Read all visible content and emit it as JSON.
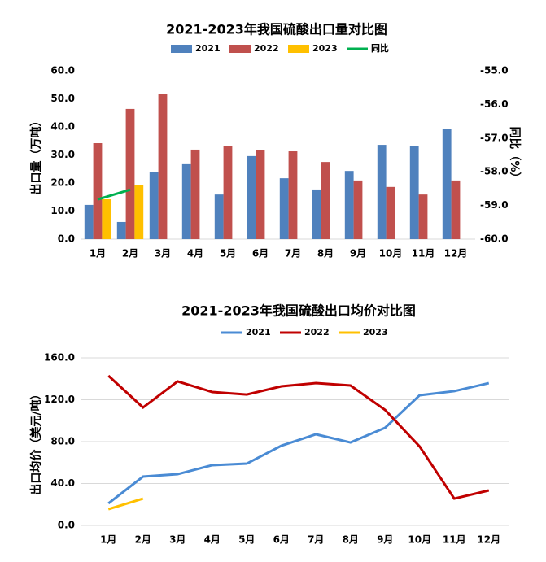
{
  "chart_data": [
    {
      "type": "bar",
      "title": "2021-2023年我国硫酸出口量对比图",
      "ylabel": "出口量（万吨）",
      "y2label": "同比（%）",
      "categories": [
        "1月",
        "2月",
        "3月",
        "4月",
        "5月",
        "6月",
        "7月",
        "8月",
        "9月",
        "10月",
        "11月",
        "12月"
      ],
      "series": [
        {
          "name": "2021",
          "color": "#4f81bd",
          "values": [
            12.2,
            6.1,
            23.8,
            26.7,
            15.9,
            29.6,
            21.7,
            17.7,
            24.3,
            33.6,
            33.3,
            39.4
          ]
        },
        {
          "name": "2022",
          "color": "#c0504d",
          "values": [
            34.2,
            46.4,
            51.6,
            31.9,
            33.3,
            31.6,
            31.3,
            27.5,
            20.9,
            18.6,
            15.9,
            20.9
          ]
        },
        {
          "name": "2023",
          "color": "#ffc000",
          "values": [
            14.2,
            19.4,
            null,
            null,
            null,
            null,
            null,
            null,
            null,
            null,
            null,
            null
          ]
        },
        {
          "name": "同比",
          "color": "#00b050",
          "type": "line",
          "axis": "y2",
          "values": [
            -58.82,
            -58.53,
            null,
            null,
            null,
            null,
            null,
            null,
            null,
            null,
            null,
            null
          ]
        }
      ],
      "ylim": [
        0,
        60
      ],
      "yticks": [
        {
          "value": 0,
          "label": "0.0"
        },
        {
          "value": 10,
          "label": "10.0"
        },
        {
          "value": 20,
          "label": "20.0"
        },
        {
          "value": 30,
          "label": "30.0"
        },
        {
          "value": 40,
          "label": "40.0"
        },
        {
          "value": 50,
          "label": "50.0"
        },
        {
          "value": 60,
          "label": "60.0"
        }
      ],
      "y2lim": [
        -60,
        -55
      ],
      "y2ticks": [
        {
          "value": -60,
          "label": "-60.0"
        },
        {
          "value": -59,
          "label": "-59.0"
        },
        {
          "value": -58,
          "label": "-58.0"
        },
        {
          "value": -57,
          "label": "-57.0"
        },
        {
          "value": -56,
          "label": "-56.0"
        },
        {
          "value": -55,
          "label": "-55.0"
        }
      ],
      "grid": false,
      "legend": "top"
    },
    {
      "type": "line",
      "title": "2021-2023年我国硫酸出口均价对比图",
      "ylabel": "出口均价（美元/吨）",
      "categories": [
        "1月",
        "2月",
        "3月",
        "4月",
        "5月",
        "6月",
        "7月",
        "8月",
        "9月",
        "10月",
        "11月",
        "12月"
      ],
      "series": [
        {
          "name": "2021",
          "color": "#4a8bd4",
          "values": [
            21,
            46.6,
            48.9,
            57.5,
            59,
            76.1,
            87,
            79.2,
            93.2,
            124.3,
            128.2,
            135.9
          ]
        },
        {
          "name": "2022",
          "color": "#c00000",
          "values": [
            142.9,
            112.6,
            137.5,
            127.4,
            125,
            132.8,
            135.9,
            133.6,
            110.3,
            75.3,
            25.6,
            33.4
          ]
        },
        {
          "name": "2023",
          "color": "#ffc000",
          "values": [
            15.5,
            25.6,
            null,
            null,
            null,
            null,
            null,
            null,
            null,
            null,
            null,
            null
          ]
        }
      ],
      "ylim": [
        0,
        160
      ],
      "yticks": [
        {
          "value": 0,
          "label": "0.0"
        },
        {
          "value": 40,
          "label": "40.0"
        },
        {
          "value": 80,
          "label": "80.0"
        },
        {
          "value": 120,
          "label": "120.0"
        },
        {
          "value": 160,
          "label": "160.0"
        }
      ],
      "grid": true,
      "legend": "top"
    }
  ]
}
